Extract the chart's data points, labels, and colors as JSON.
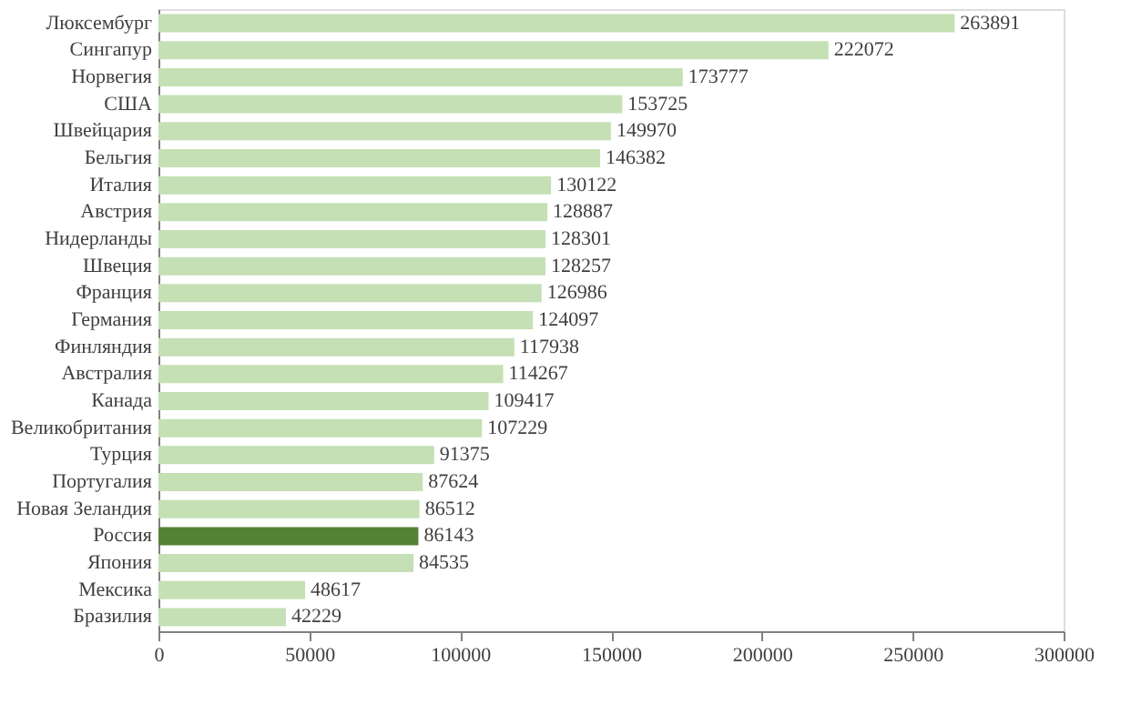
{
  "chart_data": {
    "type": "bar",
    "orientation": "horizontal",
    "categories": [
      "Люксембург",
      "Сингапур",
      "Норвегия",
      "США",
      "Швейцария",
      "Бельгия",
      "Италия",
      "Австрия",
      "Нидерланды",
      "Швеция",
      "Франция",
      "Германия",
      "Финляндия",
      "Австралия",
      "Канада",
      "Великобритания",
      "Турция",
      "Португалия",
      "Новая Зеландия",
      "Россия",
      "Япония",
      "Мексика",
      "Бразилия"
    ],
    "values": [
      263891,
      222072,
      173777,
      153725,
      149970,
      146382,
      130122,
      128887,
      128301,
      128257,
      126986,
      124097,
      117938,
      114267,
      109417,
      107229,
      91375,
      87624,
      86512,
      86143,
      84535,
      48617,
      42229
    ],
    "colors": [
      "#c5e0b4",
      "#c5e0b4",
      "#c5e0b4",
      "#c5e0b4",
      "#c5e0b4",
      "#c5e0b4",
      "#c5e0b4",
      "#c5e0b4",
      "#c5e0b4",
      "#c5e0b4",
      "#c5e0b4",
      "#c5e0b4",
      "#c5e0b4",
      "#c5e0b4",
      "#c5e0b4",
      "#c5e0b4",
      "#c5e0b4",
      "#c5e0b4",
      "#c5e0b4",
      "#548235",
      "#c5e0b4",
      "#c5e0b4",
      "#c5e0b4"
    ],
    "xlim": [
      0,
      300000
    ],
    "xticks": [
      0,
      50000,
      100000,
      150000,
      200000,
      250000,
      300000
    ],
    "data_labels": true,
    "grid": false
  }
}
